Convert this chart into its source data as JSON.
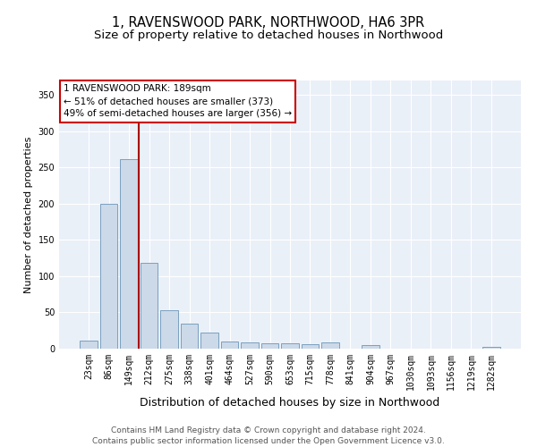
{
  "title": "1, RAVENSWOOD PARK, NORTHWOOD, HA6 3PR",
  "subtitle": "Size of property relative to detached houses in Northwood",
  "xlabel": "Distribution of detached houses by size in Northwood",
  "ylabel": "Number of detached properties",
  "categories": [
    "23sqm",
    "86sqm",
    "149sqm",
    "212sqm",
    "275sqm",
    "338sqm",
    "401sqm",
    "464sqm",
    "527sqm",
    "590sqm",
    "653sqm",
    "715sqm",
    "778sqm",
    "841sqm",
    "904sqm",
    "967sqm",
    "1030sqm",
    "1093sqm",
    "1156sqm",
    "1219sqm",
    "1282sqm"
  ],
  "values": [
    11,
    200,
    262,
    118,
    53,
    35,
    22,
    10,
    9,
    8,
    7,
    6,
    9,
    0,
    5,
    0,
    0,
    0,
    0,
    0,
    3
  ],
  "bar_color": "#ccd9e8",
  "bar_edge_color": "#7aa0c0",
  "vline_index": 2.5,
  "vertical_line_color": "#aa0000",
  "annotation_text": "1 RAVENSWOOD PARK: 189sqm\n← 51% of detached houses are smaller (373)\n49% of semi-detached houses are larger (356) →",
  "annotation_box_facecolor": "#ffffff",
  "annotation_box_edgecolor": "#cc0000",
  "ylim": [
    0,
    370
  ],
  "yticks": [
    0,
    50,
    100,
    150,
    200,
    250,
    300,
    350
  ],
  "bg_color": "#eaf0f8",
  "grid_color": "#ffffff",
  "footer_line1": "Contains HM Land Registry data © Crown copyright and database right 2024.",
  "footer_line2": "Contains public sector information licensed under the Open Government Licence v3.0.",
  "title_fontsize": 10.5,
  "subtitle_fontsize": 9.5,
  "xlabel_fontsize": 9,
  "ylabel_fontsize": 8,
  "tick_fontsize": 7,
  "annotation_fontsize": 7.5,
  "footer_fontsize": 6.5
}
